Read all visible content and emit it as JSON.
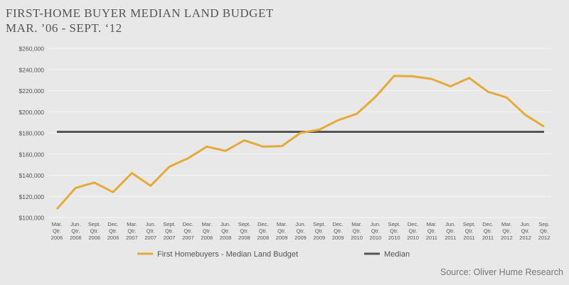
{
  "page": {
    "title_line1": "FIRST-HOME BUYER MEDIAN LAND BUDGET",
    "title_line2": "MAR. ’06 - SEPT. ‘12",
    "source": "Source: Oliver Hume Research"
  },
  "colors": {
    "background": "#e8e8e8",
    "budget_line": "#e6a93a",
    "median_line": "#555555",
    "grid": "#f4f4f4",
    "text": "#555555"
  },
  "chart_data": {
    "type": "line",
    "title": "FIRST-HOME BUYER MEDIAN LAND BUDGET",
    "subtitle": "MAR. ’06 - SEPT. ‘12",
    "categories": [
      [
        "Mar.",
        "Qtr.",
        "2006"
      ],
      [
        "Jun.",
        "Qtr.",
        "2006"
      ],
      [
        "Sept.",
        "Qtr.",
        "2006"
      ],
      [
        "Dec.",
        "Qtr.",
        "2006"
      ],
      [
        "Mar.",
        "Qtr.",
        "2007"
      ],
      [
        "Jun.",
        "Qtr.",
        "2007"
      ],
      [
        "Sept.",
        "Qtr.",
        "2007"
      ],
      [
        "Dec.",
        "Qtr.",
        "2007"
      ],
      [
        "Mar.",
        "Qtr.",
        "2008"
      ],
      [
        "Jun.",
        "Qtr.",
        "2008"
      ],
      [
        "Sept.",
        "Qtr.",
        "2008"
      ],
      [
        "Dec.",
        "Qtr.",
        "2008"
      ],
      [
        "Mar.",
        "Qtr.",
        "2009"
      ],
      [
        "Jun.",
        "Qtr.",
        "2009"
      ],
      [
        "Sept.",
        "Qtr.",
        "2009"
      ],
      [
        "Dec.",
        "Qtr.",
        "2009"
      ],
      [
        "Mar.",
        "Qtr.",
        "2010"
      ],
      [
        "Jun.",
        "Qtr.",
        "2010"
      ],
      [
        "Sept.",
        "Qtr.",
        "2010"
      ],
      [
        "Dec.",
        "Qtr.",
        "2010"
      ],
      [
        "Mar.",
        "Qtr.",
        "2011"
      ],
      [
        "Jun.",
        "Qtr.",
        "2011"
      ],
      [
        "Sept.",
        "Qtr.",
        "2011"
      ],
      [
        "Dec.",
        "Qtr.",
        "2011"
      ],
      [
        "Mar.",
        "Qtr.",
        "2012"
      ],
      [
        "Jun.",
        "Qtr.",
        "2012"
      ],
      [
        "Sep.",
        "Qtr.",
        "2012"
      ]
    ],
    "series": [
      {
        "name": "First Homebuyers - Median Land Budget",
        "color": "#e6a93a",
        "values": [
          108000,
          128000,
          133000,
          124000,
          142000,
          130000,
          148000,
          156000,
          167000,
          163000,
          173000,
          167000,
          167500,
          180000,
          183000,
          192000,
          198000,
          214000,
          234000,
          233500,
          231000,
          224000,
          232000,
          219000,
          213500,
          197000,
          186000
        ]
      },
      {
        "name": "Median",
        "color": "#555555",
        "values": [
          181000,
          181000,
          181000,
          181000,
          181000,
          181000,
          181000,
          181000,
          181000,
          181000,
          181000,
          181000,
          181000,
          181000,
          181000,
          181000,
          181000,
          181000,
          181000,
          181000,
          181000,
          181000,
          181000,
          181000,
          181000,
          181000,
          181000
        ]
      }
    ],
    "yticks": [
      "$100,000",
      "$120,000",
      "$140,000",
      "$160,000",
      "$180,000",
      "$200,000",
      "$220,000",
      "$240,000",
      "$260,000"
    ],
    "ylim": [
      100000,
      260000
    ],
    "grid": true,
    "legend": "bottom"
  }
}
